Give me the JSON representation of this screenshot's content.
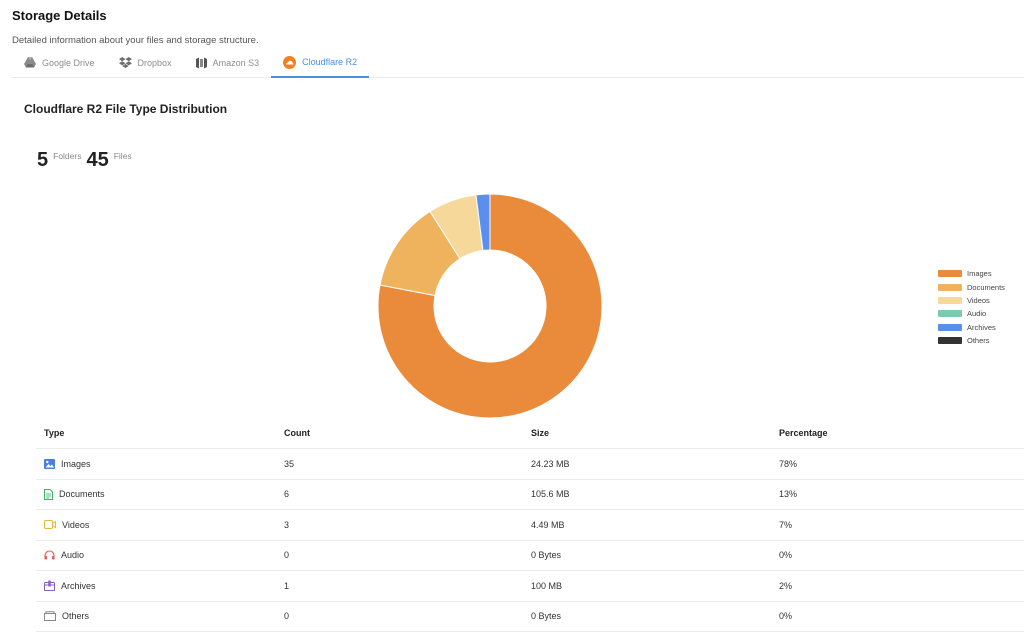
{
  "header": {
    "title": "Storage Details",
    "subtitle": "Detailed information about your files and storage structure."
  },
  "tabs": [
    {
      "label": "Google Drive",
      "icon": "google-drive-icon",
      "active": false
    },
    {
      "label": "Dropbox",
      "icon": "dropbox-icon",
      "active": false
    },
    {
      "label": "Amazon S3",
      "icon": "amazon-s3-icon",
      "active": false
    },
    {
      "label": "Cloudflare R2",
      "icon": "cloudflare-icon",
      "active": true
    }
  ],
  "section_title": "Cloudflare R2 File Type Distribution",
  "stats": {
    "folders_count": "5",
    "folders_label": "Folders",
    "files_count": "45",
    "files_label": "Files"
  },
  "colors": {
    "accent": "#4a90e2",
    "images": "#e98b3b",
    "documents": "#f0b35d",
    "videos": "#f6d99a",
    "audio": "#7ccbb0",
    "archives": "#5a8ff0",
    "others": "#333333"
  },
  "chart_data": {
    "type": "pie",
    "variant": "donut",
    "series": [
      {
        "name": "Images",
        "value": 78,
        "color": "#e98b3b"
      },
      {
        "name": "Documents",
        "value": 13,
        "color": "#f0b35d"
      },
      {
        "name": "Videos",
        "value": 7,
        "color": "#f6d99a"
      },
      {
        "name": "Audio",
        "value": 0,
        "color": "#7ccbb0"
      },
      {
        "name": "Archives",
        "value": 2,
        "color": "#5a8ff0"
      },
      {
        "name": "Others",
        "value": 0,
        "color": "#333333"
      }
    ],
    "legend_position": "right"
  },
  "table": {
    "headers": {
      "type": "Type",
      "count": "Count",
      "size": "Size",
      "percentage": "Percentage"
    },
    "rows": [
      {
        "type": "Images",
        "icon": "image-icon",
        "color": "#4a7fe0",
        "count": "35",
        "size": "24.23 MB",
        "percentage": "78%"
      },
      {
        "type": "Documents",
        "icon": "document-icon",
        "color": "#3fb36b",
        "count": "6",
        "size": "105.6 MB",
        "percentage": "13%"
      },
      {
        "type": "Videos",
        "icon": "video-icon",
        "color": "#e6b73a",
        "count": "3",
        "size": "4.49 MB",
        "percentage": "7%"
      },
      {
        "type": "Audio",
        "icon": "headphones-icon",
        "color": "#e05a4e",
        "count": "0",
        "size": "0 Bytes",
        "percentage": "0%"
      },
      {
        "type": "Archives",
        "icon": "archive-icon",
        "color": "#8a5cc9",
        "count": "1",
        "size": "100 MB",
        "percentage": "2%"
      },
      {
        "type": "Others",
        "icon": "file-icon",
        "color": "#888888",
        "count": "0",
        "size": "0 Bytes",
        "percentage": "0%"
      }
    ]
  }
}
